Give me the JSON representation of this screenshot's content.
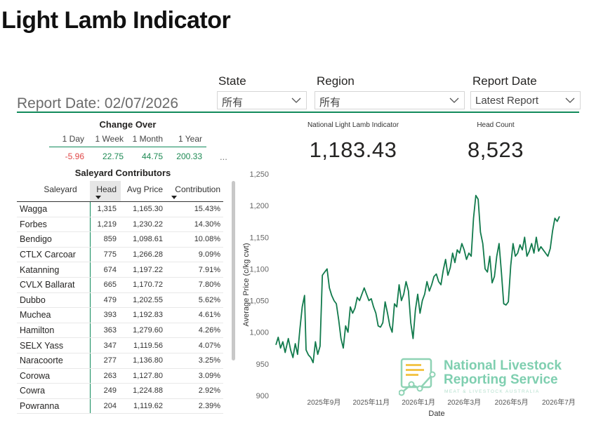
{
  "page": {
    "title": "Light Lamb Indicator"
  },
  "filters": {
    "state": {
      "label": "State",
      "value": "所有"
    },
    "region": {
      "label": "Region",
      "value": "所有"
    },
    "report_date": {
      "label": "Report Date",
      "value": "Latest Report"
    }
  },
  "report_date_text": "Report Date: 02/07/2026",
  "change_over": {
    "title": "Change Over",
    "headers": [
      "1 Day",
      "1 Week",
      "1 Month",
      "1 Year"
    ],
    "values": [
      "-5.96",
      "22.75",
      "44.75",
      "200.33"
    ],
    "more": "..."
  },
  "contributors": {
    "title": "Saleyard Contributors",
    "columns": [
      "Saleyard",
      "Head",
      "Avg Price",
      "Contribution"
    ],
    "rows": [
      [
        "Wagga",
        "1,315",
        "1,165.30",
        "15.43%"
      ],
      [
        "Forbes",
        "1,219",
        "1,230.22",
        "14.30%"
      ],
      [
        "Bendigo",
        "859",
        "1,098.61",
        "10.08%"
      ],
      [
        "CTLX Carcoar",
        "775",
        "1,266.28",
        "9.09%"
      ],
      [
        "Katanning",
        "674",
        "1,197.22",
        "7.91%"
      ],
      [
        "CVLX Ballarat",
        "665",
        "1,170.72",
        "7.80%"
      ],
      [
        "Dubbo",
        "479",
        "1,202.55",
        "5.62%"
      ],
      [
        "Muchea",
        "393",
        "1,192.83",
        "4.61%"
      ],
      [
        "Hamilton",
        "363",
        "1,279.60",
        "4.26%"
      ],
      [
        "SELX Yass",
        "347",
        "1,119.56",
        "4.07%"
      ],
      [
        "Naracoorte",
        "277",
        "1,136.80",
        "3.25%"
      ],
      [
        "Corowa",
        "263",
        "1,127.80",
        "3.09%"
      ],
      [
        "Cowra",
        "249",
        "1,224.88",
        "2.92%"
      ],
      [
        "Powranna",
        "204",
        "1,119.62",
        "2.39%"
      ]
    ]
  },
  "kpis": {
    "indicator": {
      "label": "National Light Lamb Indicator",
      "value": "1,183.43"
    },
    "head_count": {
      "label": "Head Count",
      "value": "8,523"
    }
  },
  "chart_data": {
    "type": "line",
    "xlabel": "Date",
    "ylabel": "Average Price (c/kg cwt)",
    "ylim": [
      900,
      1250
    ],
    "yticks": [
      "900",
      "950",
      "1,000",
      "1,050",
      "1,100",
      "1,150",
      "1,200",
      "1,250"
    ],
    "xticks": [
      "2025年9月",
      "2025年11月",
      "2026年1月",
      "2026年3月",
      "2026年5月",
      "2026年7月"
    ],
    "xlim": [
      "2025-07-01",
      "2026-07-02"
    ],
    "grid": false,
    "color": "#117a4c",
    "series": [
      {
        "x": [
          "2025-07-01",
          "2025-07-04",
          "2025-07-07",
          "2025-07-10",
          "2025-07-13",
          "2025-07-17",
          "2025-07-20",
          "2025-07-23",
          "2025-07-26",
          "2025-07-29",
          "2025-08-01",
          "2025-08-04",
          "2025-08-07",
          "2025-08-09",
          "2025-08-12",
          "2025-08-15",
          "2025-08-18",
          "2025-08-21",
          "2025-08-24",
          "2025-08-27",
          "2025-08-30",
          "2025-09-02",
          "2025-09-05",
          "2025-09-08",
          "2025-09-11",
          "2025-09-14",
          "2025-09-17",
          "2025-09-20",
          "2025-09-23",
          "2025-09-26",
          "2025-09-29",
          "2025-10-02",
          "2025-10-05",
          "2025-10-08",
          "2025-10-11",
          "2025-10-14",
          "2025-10-17",
          "2025-10-20",
          "2025-10-23",
          "2025-10-26",
          "2025-10-29",
          "2025-11-01",
          "2025-11-04",
          "2025-11-07",
          "2025-11-10",
          "2025-11-13",
          "2025-11-16",
          "2025-11-19",
          "2025-11-22",
          "2025-11-25",
          "2025-11-28",
          "2025-12-01",
          "2025-12-04",
          "2025-12-07",
          "2025-12-10",
          "2025-12-13",
          "2025-12-16",
          "2025-12-19",
          "2025-12-22",
          "2025-12-25",
          "2025-12-28",
          "2025-12-31",
          "2026-01-03",
          "2026-01-06",
          "2026-01-09",
          "2026-01-12",
          "2026-01-15",
          "2026-01-18",
          "2026-01-21",
          "2026-01-24",
          "2026-01-27",
          "2026-01-30",
          "2026-02-02",
          "2026-02-05",
          "2026-02-08",
          "2026-02-11",
          "2026-02-14",
          "2026-02-17",
          "2026-02-20",
          "2026-02-23",
          "2026-02-26",
          "2026-03-01",
          "2026-03-04",
          "2026-03-07",
          "2026-03-10",
          "2026-03-13",
          "2026-03-16",
          "2026-03-19",
          "2026-03-22",
          "2026-03-25",
          "2026-03-28",
          "2026-03-31",
          "2026-04-03",
          "2026-04-06",
          "2026-04-09",
          "2026-04-12",
          "2026-04-15",
          "2026-04-18",
          "2026-04-21",
          "2026-04-24",
          "2026-04-27",
          "2026-04-30",
          "2026-05-03",
          "2026-05-06",
          "2026-05-09",
          "2026-05-12",
          "2026-05-15",
          "2026-05-18",
          "2026-05-21",
          "2026-05-24",
          "2026-05-27",
          "2026-05-30",
          "2026-06-02",
          "2026-06-05",
          "2026-06-08",
          "2026-06-11",
          "2026-06-14",
          "2026-06-17",
          "2026-06-20",
          "2026-06-23",
          "2026-06-26",
          "2026-06-29",
          "2026-07-02"
        ],
        "values": [
          980,
          992,
          975,
          985,
          968,
          990,
          972,
          960,
          982,
          965,
          1005,
          1040,
          1058,
          972,
          964,
          960,
          952,
          985,
          965,
          978,
          1090,
          1095,
          1100,
          1070,
          1058,
          1050,
          1045,
          1020,
          990,
          975,
          1010,
          1000,
          1040,
          1030,
          1038,
          1055,
          1050,
          1060,
          1070,
          1060,
          1050,
          1053,
          1040,
          1030,
          1010,
          1008,
          1015,
          1048,
          1030,
          1010,
          1000,
          1045,
          1040,
          1075,
          1050,
          1060,
          1080,
          1065,
          1015,
          990,
          1035,
          1060,
          1030,
          1050,
          1060,
          1080,
          1065,
          1075,
          1088,
          1092,
          1080,
          1075,
          1098,
          1115,
          1090,
          1102,
          1125,
          1110,
          1130,
          1125,
          1140,
          1130,
          1115,
          1125,
          1120,
          1180,
          1216,
          1210,
          1158,
          1140,
          1100,
          1095,
          1120,
          1078,
          1088,
          1120,
          1140,
          1095,
          1045,
          1043,
          1048,
          1105,
          1140,
          1120,
          1125,
          1138,
          1130,
          1150,
          1120,
          1128,
          1140,
          1125,
          1150,
          1128,
          1135,
          1130,
          1125,
          1120,
          1132,
          1160,
          1180,
          1175,
          1183
        ]
      }
    ]
  },
  "logo": {
    "line1": "National Livestock",
    "line2": "Reporting Service",
    "tagline": "MEAT & LIVESTOCK AUSTRALIA"
  }
}
